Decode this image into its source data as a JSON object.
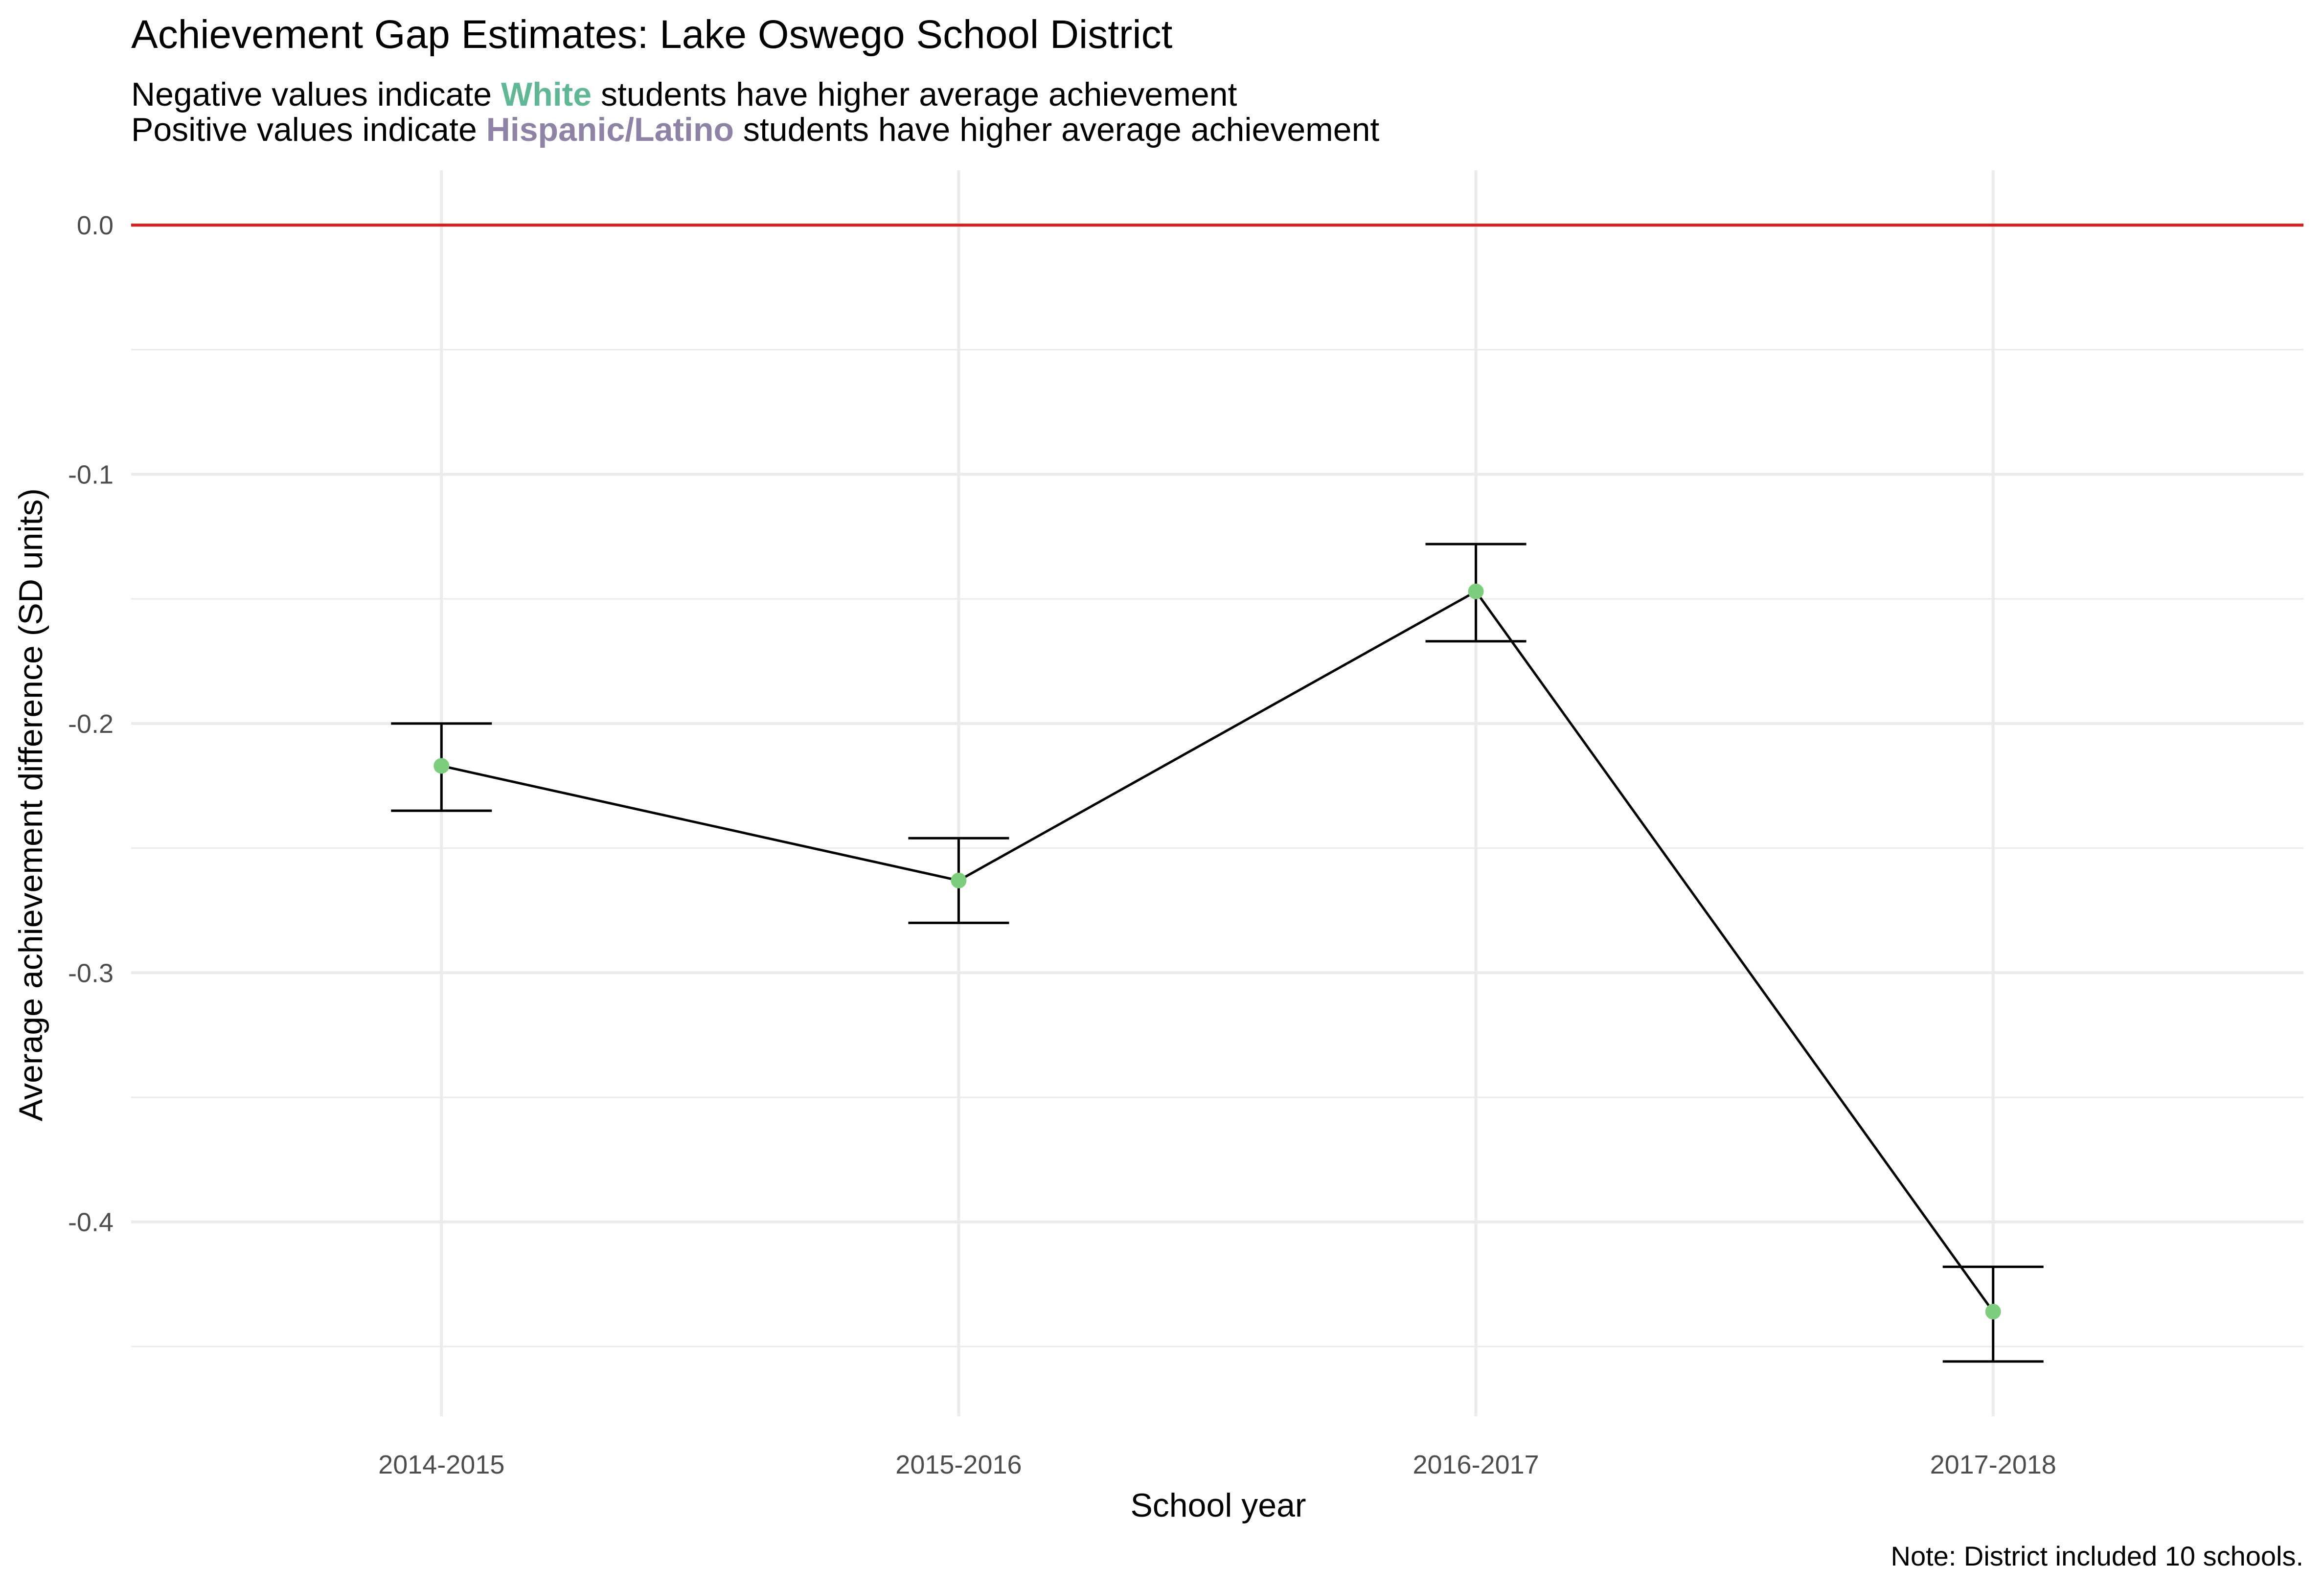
{
  "chart_data": {
    "type": "line",
    "title": "Achievement Gap Estimates: Lake Oswego School District",
    "subtitle": [
      {
        "before": "Negative values indicate ",
        "group": "White",
        "after": " students have higher average achievement",
        "group_color": "#5fb894"
      },
      {
        "before": "Positive values indicate ",
        "group": "Hispanic/Latino",
        "after": " students have higher average achievement",
        "group_color": "#8e82a6"
      }
    ],
    "xlabel": "School year",
    "ylabel": "Average achievement difference (SD units)",
    "caption": "Note: District included 10 schools.",
    "categories": [
      "2014-2015",
      "2015-2016",
      "2016-2017",
      "2017-2018"
    ],
    "series": [
      {
        "values": [
          -0.217,
          -0.263,
          -0.147,
          -0.436
        ],
        "lower": [
          -0.235,
          -0.28,
          -0.167,
          -0.456
        ],
        "upper": [
          -0.2,
          -0.246,
          -0.128,
          -0.418
        ],
        "line_color": "#000000",
        "point_color": "#7ccd7c"
      }
    ],
    "yticks": [
      0.0,
      -0.1,
      -0.2,
      -0.3,
      -0.4
    ],
    "ytick_labels": [
      "0.0",
      "-0.1",
      "-0.2",
      "-0.3",
      "-0.4"
    ],
    "ylim": [
      -0.478,
      0.022
    ],
    "reference_line": {
      "y": 0,
      "color": "#e31a1c"
    },
    "grid": true,
    "gridline_color": "#ebebeb"
  }
}
